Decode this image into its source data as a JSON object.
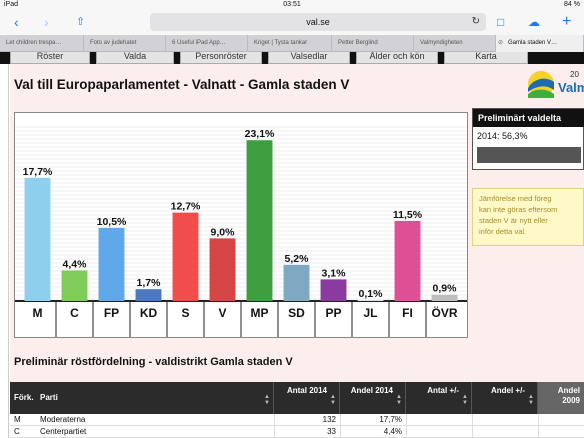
{
  "status": {
    "device": "iPad",
    "time": "03:51",
    "battery": "84 %"
  },
  "browser": {
    "url": "val.se",
    "tabs": [
      "Let children trespa…",
      "Foto av judehatet",
      "6 Useful iPad App…",
      "Kriget | Tysta tankar",
      "Petter Berglind",
      "Valmyndigheten",
      "Gamla staden V…"
    ]
  },
  "site_nav": [
    "Röster",
    "Valda",
    "Personröster",
    "Valsedlar",
    "Ålder och kön",
    "Karta"
  ],
  "page": {
    "title": "Val till Europaparlamentet - Valnatt - Gamla staden V",
    "logo_year": "20",
    "logo_name": "Valm"
  },
  "prelim_box": {
    "head": "Preliminärt valdelta",
    "value": "2014: 56,3%"
  },
  "note": {
    "lines": [
      "Jämförelse med föreg",
      "kan inte göras eftersom",
      "staden V är nytt eller",
      "inför detta val."
    ]
  },
  "chart_data": {
    "type": "bar",
    "categories": [
      "M",
      "C",
      "FP",
      "KD",
      "S",
      "V",
      "MP",
      "SD",
      "PP",
      "JL",
      "FI",
      "ÖVR"
    ],
    "values": [
      17.7,
      4.4,
      10.5,
      1.7,
      12.7,
      9.0,
      23.1,
      5.2,
      3.1,
      0.1,
      11.5,
      0.9
    ],
    "value_labels": [
      "17,7%",
      "4,4%",
      "10,5%",
      "1,7%",
      "12,7%",
      "9,0%",
      "23,1%",
      "5,2%",
      "3,1%",
      "0,1%",
      "11,5%",
      "0,9%"
    ],
    "colors": [
      "#8ecfee",
      "#7fcc5a",
      "#5fa8ea",
      "#4b78be",
      "#f24d4d",
      "#d64646",
      "#3f9e3f",
      "#7fa8c2",
      "#8a3b9e",
      "#cfe3ef",
      "#de4f96",
      "#bdbdbd"
    ],
    "ylim": [
      0,
      25
    ],
    "grid": true
  },
  "subtitle": "Preliminär röstfördelning - valdistrikt Gamla staden V",
  "table": {
    "headers": [
      "Förk.",
      "Parti",
      "Antal 2014",
      "Andel 2014",
      "Antal +/-",
      "Andel +/-",
      "Andel 2009"
    ],
    "rows": [
      {
        "abbr": "M",
        "party": "Moderaterna",
        "antal": "132",
        "andel": "17,7%"
      },
      {
        "abbr": "C",
        "party": "Centerpartiet",
        "antal": "33",
        "andel": "4,4%"
      }
    ]
  }
}
